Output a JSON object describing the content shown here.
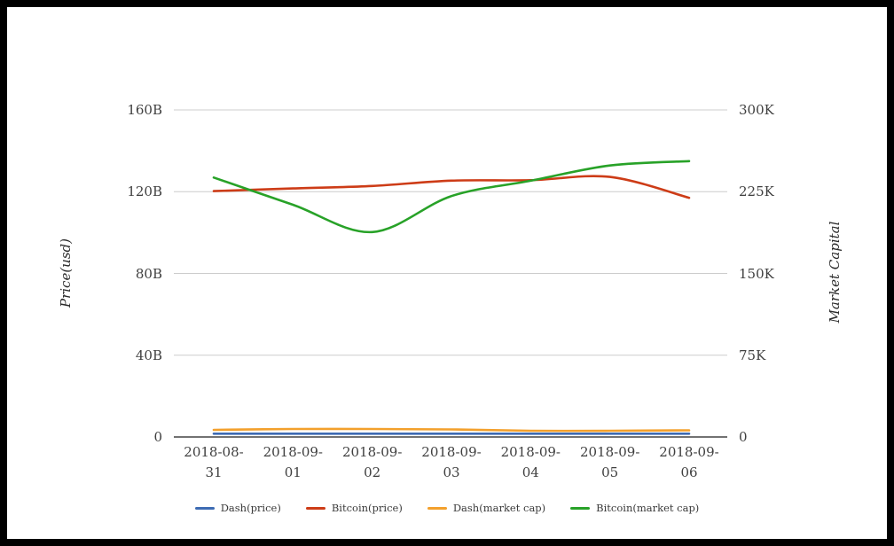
{
  "chart_data": {
    "type": "line",
    "x": [
      "2018-08-31",
      "2018-09-01",
      "2018-09-02",
      "2018-09-03",
      "2018-09-04",
      "2018-09-05",
      "2018-09-06"
    ],
    "x_labels": [
      {
        "line1": "2018-08-",
        "line2": "31"
      },
      {
        "line1": "2018-09-",
        "line2": "01"
      },
      {
        "line1": "2018-09-",
        "line2": "02"
      },
      {
        "line1": "2018-09-",
        "line2": "03"
      },
      {
        "line1": "2018-09-",
        "line2": "04"
      },
      {
        "line1": "2018-09-",
        "line2": "05"
      },
      {
        "line1": "2018-09-",
        "line2": "06"
      }
    ],
    "series": [
      {
        "name": "Dash(price)",
        "color": "#3d6bb3",
        "axis": "left",
        "values": [
          1.6,
          1.6,
          1.6,
          1.6,
          1.6,
          1.6,
          1.6
        ]
      },
      {
        "name": "Bitcoin(price)",
        "color": "#cd3c17",
        "axis": "left",
        "values": [
          120.3,
          121.6,
          122.8,
          125.4,
          125.6,
          127.2,
          117.0
        ]
      },
      {
        "name": "Dash(market cap)",
        "color": "#f3a02c",
        "axis": "right",
        "values": [
          6.5,
          7.3,
          7.3,
          6.9,
          5.7,
          5.7,
          6.1
        ]
      },
      {
        "name": "Bitcoin(market cap)",
        "color": "#28a228",
        "axis": "right",
        "values": [
          238,
          213,
          188,
          221,
          235,
          249,
          253
        ]
      }
    ],
    "left_axis": {
      "title": "Price(usd)",
      "ticks": [
        "160B",
        "120B",
        "80B",
        "40B",
        "0"
      ],
      "range": [
        0,
        160
      ],
      "unit": "B"
    },
    "right_axis": {
      "title": "Market Capital",
      "ticks": [
        "300K",
        "225K",
        "150K",
        "75K",
        "0"
      ],
      "range": [
        0,
        300
      ],
      "unit": "K"
    },
    "legend_position": "bottom",
    "grid": true,
    "colors": {
      "gridline": "#cccccc",
      "axis_line": "#444444",
      "tick_text": "#3f3f3f"
    }
  }
}
